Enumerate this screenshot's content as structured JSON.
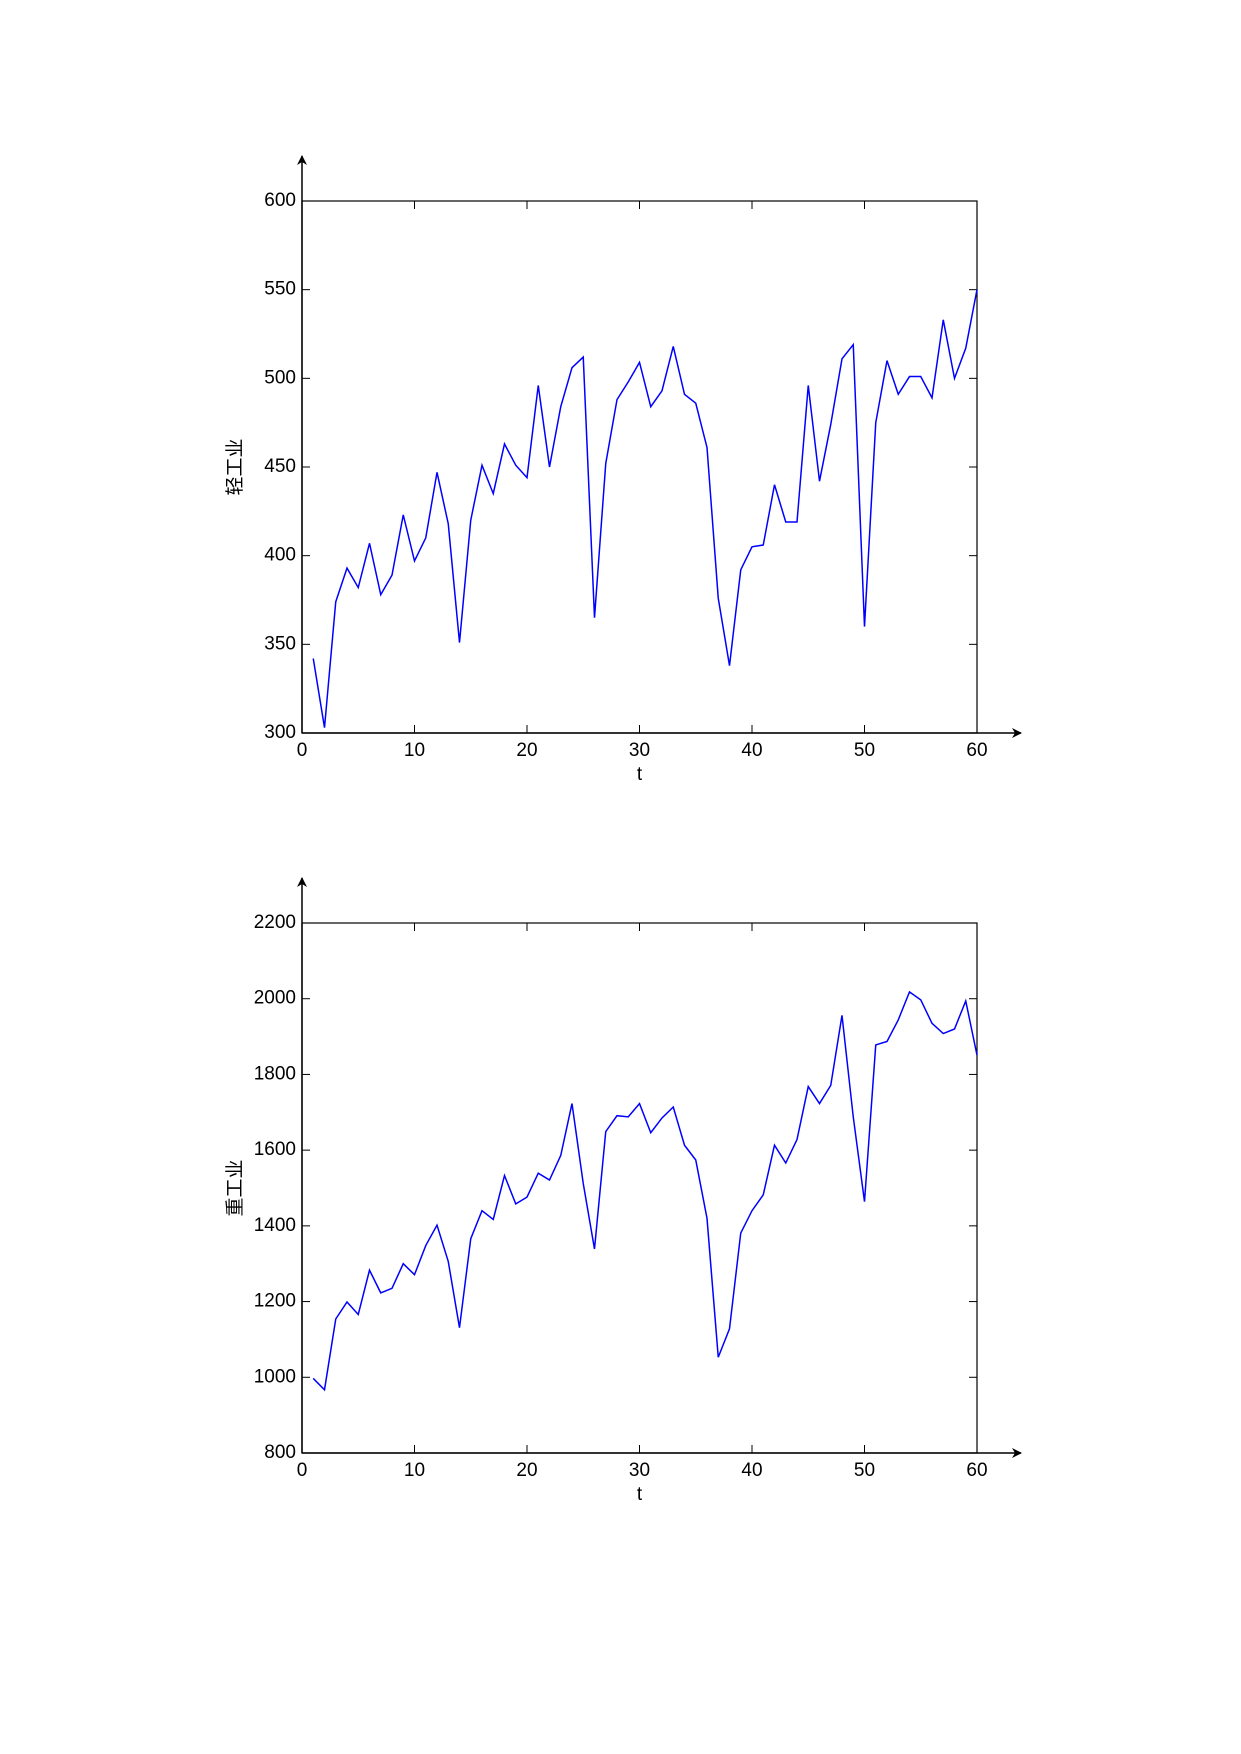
{
  "chart_data": [
    {
      "type": "line",
      "xlabel": "t",
      "ylabel": "轻工业",
      "x": [
        1,
        2,
        3,
        4,
        5,
        6,
        7,
        8,
        9,
        10,
        11,
        12,
        13,
        14,
        15,
        16,
        17,
        18,
        19,
        20,
        21,
        22,
        23,
        24,
        25,
        26,
        27,
        28,
        29,
        30,
        31,
        32,
        33,
        34,
        35,
        36,
        37,
        38,
        39,
        40,
        41,
        42,
        43,
        44,
        45,
        46,
        47,
        48,
        49,
        50,
        51,
        52,
        53,
        54,
        55,
        56,
        57,
        58,
        59,
        60
      ],
      "series": [
        {
          "color": "#0000ff",
          "values": [
            342,
            303,
            374,
            393,
            382,
            407,
            378,
            389,
            423,
            397,
            410,
            447,
            418,
            351,
            420,
            451,
            435,
            463,
            451,
            444,
            496,
            450,
            484,
            506,
            512,
            365,
            452,
            488,
            498,
            509,
            484,
            493,
            518,
            491,
            486,
            461,
            376,
            338,
            392,
            405,
            406,
            440,
            419,
            419,
            496,
            442,
            474,
            511,
            519,
            360,
            475,
            510,
            491,
            501,
            501,
            489,
            533,
            500,
            517,
            550
          ]
        }
      ],
      "xlim": [
        0,
        60
      ],
      "ylim": [
        300,
        600
      ],
      "xticks": [
        0,
        10,
        20,
        30,
        40,
        50,
        60
      ],
      "yticks": [
        300,
        350,
        400,
        450,
        500,
        550,
        600
      ]
    },
    {
      "type": "line",
      "xlabel": "t",
      "ylabel": "重工业",
      "x": [
        1,
        2,
        3,
        4,
        5,
        6,
        7,
        8,
        9,
        10,
        11,
        12,
        13,
        14,
        15,
        16,
        17,
        18,
        19,
        20,
        21,
        22,
        23,
        24,
        25,
        26,
        27,
        28,
        29,
        30,
        31,
        32,
        33,
        34,
        35,
        36,
        37,
        38,
        39,
        40,
        41,
        42,
        43,
        44,
        45,
        46,
        47,
        48,
        49,
        50,
        51,
        52,
        53,
        54,
        55,
        56,
        57,
        58,
        59,
        60
      ],
      "series": [
        {
          "color": "#0000ff",
          "values": [
            997,
            967,
            1154,
            1199,
            1166,
            1283,
            1223,
            1235,
            1300,
            1271,
            1348,
            1402,
            1306,
            1131,
            1366,
            1440,
            1417,
            1533,
            1458,
            1476,
            1539,
            1521,
            1586,
            1723,
            1512,
            1339,
            1649,
            1691,
            1688,
            1723,
            1646,
            1685,
            1714,
            1613,
            1574,
            1420,
            1053,
            1128,
            1381,
            1440,
            1482,
            1613,
            1566,
            1628,
            1768,
            1723,
            1771,
            1956,
            1688,
            1464,
            1878,
            1887,
            1944,
            2018,
            1997,
            1935,
            1908,
            1920,
            1994,
            1851
          ]
        }
      ],
      "xlim": [
        0,
        60
      ],
      "ylim": [
        800,
        2200
      ],
      "xticks": [
        0,
        10,
        20,
        30,
        40,
        50,
        60
      ],
      "yticks": [
        800,
        1000,
        1200,
        1400,
        1600,
        1800,
        2000,
        2200
      ]
    }
  ]
}
